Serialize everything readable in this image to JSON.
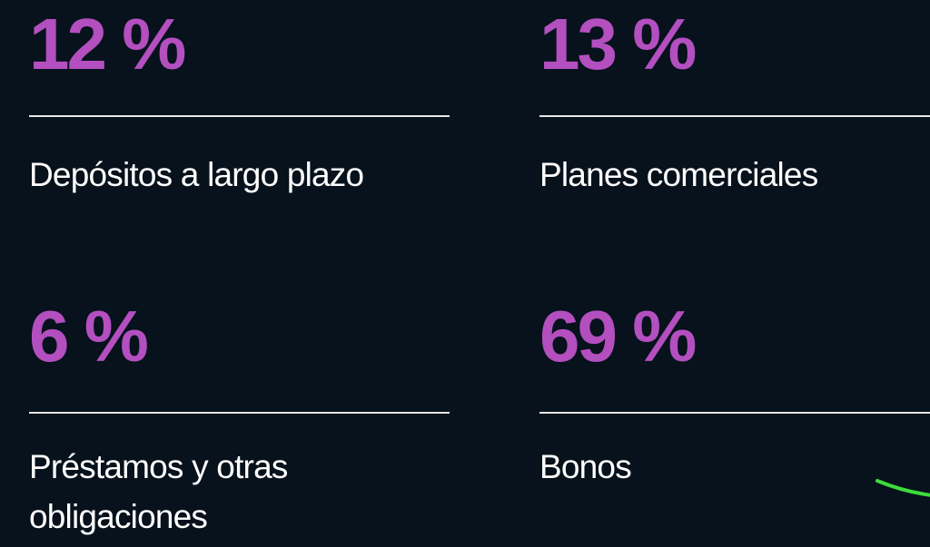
{
  "stats": [
    {
      "value": "12 %",
      "label": "Depósitos a largo plazo"
    },
    {
      "value": "13 %",
      "label": "Planes comerciales"
    },
    {
      "value": "6 %",
      "label": "Préstamos y otras obligaciones"
    },
    {
      "value": "69 %",
      "label": "Bonos"
    }
  ]
}
